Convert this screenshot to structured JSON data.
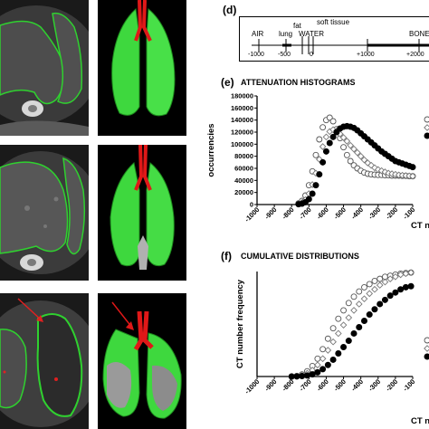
{
  "panels": {
    "d": {
      "letter": "(d)",
      "labels": {
        "air": "AIR",
        "lung": "lung",
        "fat": "fat",
        "water": "WATER",
        "soft": "soft tissue",
        "bone": "BONE"
      },
      "ticks": [
        "-1000",
        "-500",
        "0",
        "+1000",
        "+2000"
      ]
    },
    "e": {
      "letter": "(e)",
      "title": "ATTENUATION HISTOGRAMS"
    },
    "f": {
      "letter": "(f)",
      "title": "CUMULATIVE DISTRIBUTIONS"
    }
  },
  "chart_data": [
    {
      "type": "scatter",
      "title": "ATTENUATION HISTOGRAMS",
      "xlabel": "CT nu",
      "ylabel": "occurrencies",
      "xlim": [
        -1000,
        -100
      ],
      "ylim": [
        0,
        180000
      ],
      "x_ticks": [
        "-1000",
        "-900",
        "-800",
        "-700",
        "-600",
        "-500",
        "-400",
        "-300",
        "-200",
        "-100"
      ],
      "y_ticks": [
        "0",
        "20000",
        "40000",
        "60000",
        "80000",
        "100000",
        "120000",
        "140000",
        "160000",
        "180000"
      ],
      "series": [
        {
          "marker": "open-circle",
          "color": "#555555",
          "x": [
            -760,
            -740,
            -720,
            -700,
            -680,
            -660,
            -640,
            -620,
            -600,
            -580,
            -560,
            -540,
            -520,
            -500,
            -480,
            -460,
            -440,
            -420,
            -400,
            -380,
            -360,
            -340,
            -320,
            -300,
            -280,
            -260,
            -240,
            -220,
            -200,
            -180,
            -160,
            -140,
            -120,
            -100
          ],
          "y": [
            2000,
            6000,
            15000,
            32000,
            55000,
            82000,
            108000,
            128000,
            140000,
            144000,
            138000,
            125000,
            110000,
            95000,
            82000,
            72000,
            65000,
            60000,
            56000,
            53000,
            51000,
            50000,
            49500,
            49000,
            49000,
            48500,
            48500,
            48000,
            48000,
            48000,
            47500,
            47500,
            47000,
            47000
          ]
        },
        {
          "marker": "open-diamond",
          "color": "#777777",
          "x": [
            -760,
            -740,
            -720,
            -700,
            -680,
            -660,
            -640,
            -620,
            -600,
            -580,
            -560,
            -540,
            -520,
            -500,
            -480,
            -460,
            -440,
            -420,
            -400,
            -380,
            -360,
            -340,
            -320,
            -300,
            -280,
            -260,
            -240,
            -220,
            -200,
            -180,
            -160,
            -140,
            -120,
            -100
          ],
          "y": [
            1000,
            3000,
            8000,
            18000,
            33000,
            52000,
            75000,
            96000,
            112000,
            121000,
            124000,
            122000,
            117000,
            111000,
            105000,
            98000,
            92000,
            86000,
            80000,
            74000,
            69000,
            65000,
            61000,
            58000,
            56000,
            54000,
            52000,
            51000,
            50000,
            49000,
            48500,
            48000,
            47500,
            47000
          ]
        },
        {
          "marker": "filled-circle",
          "color": "#000000",
          "x": [
            -760,
            -740,
            -720,
            -700,
            -680,
            -660,
            -640,
            -620,
            -600,
            -580,
            -560,
            -540,
            -520,
            -500,
            -480,
            -460,
            -440,
            -420,
            -400,
            -380,
            -360,
            -340,
            -320,
            -300,
            -280,
            -260,
            -240,
            -220,
            -200,
            -180,
            -160,
            -140,
            -120,
            -100
          ],
          "y": [
            500,
            1500,
            4000,
            9000,
            18000,
            32000,
            50000,
            70000,
            88000,
            102000,
            112000,
            120000,
            126000,
            129000,
            130000,
            129000,
            127000,
            123000,
            118000,
            113000,
            108000,
            103000,
            98000,
            93000,
            88000,
            84000,
            80000,
            76000,
            72000,
            70000,
            68000,
            66000,
            64000,
            62000
          ]
        }
      ]
    },
    {
      "type": "scatter",
      "title": "CUMULATIVE DISTRIBUTIONS",
      "xlabel": "CT nu",
      "ylabel": "CT number frequency",
      "xlim": [
        -1000,
        -100
      ],
      "ylim": [
        0,
        1
      ],
      "x_ticks": [
        "-1000",
        "-900",
        "-800",
        "-700",
        "-600",
        "-500",
        "-400",
        "-300",
        "-200",
        "-100"
      ],
      "series": [
        {
          "marker": "open-circle",
          "color": "#555555",
          "x": [
            -800,
            -770,
            -740,
            -710,
            -680,
            -650,
            -620,
            -590,
            -560,
            -530,
            -500,
            -470,
            -440,
            -410,
            -380,
            -350,
            -320,
            -290,
            -260,
            -230,
            -200,
            -170,
            -140,
            -110
          ],
          "y": [
            0,
            0.005,
            0.02,
            0.05,
            0.1,
            0.17,
            0.26,
            0.36,
            0.46,
            0.55,
            0.63,
            0.7,
            0.76,
            0.81,
            0.85,
            0.88,
            0.91,
            0.93,
            0.95,
            0.96,
            0.97,
            0.98,
            0.985,
            0.99
          ]
        },
        {
          "marker": "open-diamond",
          "color": "#777777",
          "x": [
            -800,
            -770,
            -740,
            -710,
            -680,
            -650,
            -620,
            -590,
            -560,
            -530,
            -500,
            -470,
            -440,
            -410,
            -380,
            -350,
            -320,
            -290,
            -260,
            -230,
            -200,
            -170,
            -140,
            -110
          ],
          "y": [
            0,
            0.003,
            0.012,
            0.03,
            0.06,
            0.11,
            0.17,
            0.25,
            0.33,
            0.41,
            0.49,
            0.56,
            0.63,
            0.69,
            0.74,
            0.79,
            0.83,
            0.87,
            0.9,
            0.93,
            0.95,
            0.97,
            0.98,
            0.99
          ]
        },
        {
          "marker": "filled-circle",
          "color": "#000000",
          "x": [
            -800,
            -770,
            -740,
            -710,
            -680,
            -650,
            -620,
            -590,
            -560,
            -530,
            -500,
            -470,
            -440,
            -410,
            -380,
            -350,
            -320,
            -290,
            -260,
            -230,
            -200,
            -170,
            -140,
            -110
          ],
          "y": [
            0,
            0.001,
            0.004,
            0.01,
            0.02,
            0.04,
            0.07,
            0.11,
            0.16,
            0.22,
            0.28,
            0.34,
            0.41,
            0.47,
            0.53,
            0.59,
            0.64,
            0.69,
            0.73,
            0.77,
            0.8,
            0.83,
            0.85,
            0.86
          ]
        }
      ]
    }
  ]
}
